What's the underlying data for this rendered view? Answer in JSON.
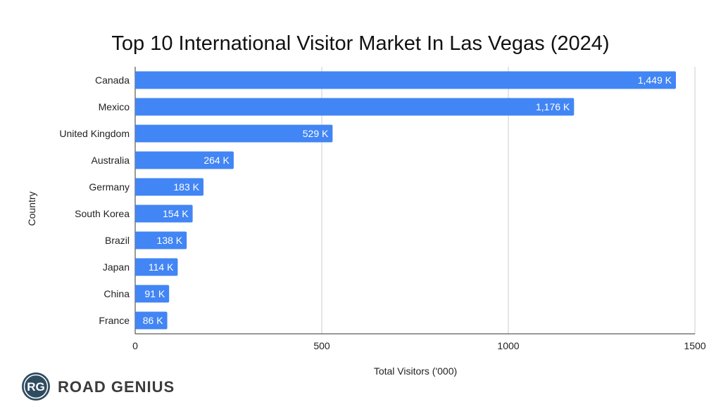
{
  "chart_data": {
    "type": "bar",
    "orientation": "horizontal",
    "title": "Top 10 International Visitor Market In Las Vegas (2024)",
    "xlabel": "Total Visitors ('000)",
    "ylabel": "Country",
    "categories": [
      "Canada",
      "Mexico",
      "United Kingdom",
      "Australia",
      "Germany",
      "South Korea",
      "Brazil",
      "Japan",
      "China",
      "France"
    ],
    "values": [
      1449,
      1176,
      529,
      264,
      183,
      154,
      138,
      114,
      91,
      86
    ],
    "data_labels": [
      "1,449 K",
      "1,176 K",
      "529 K",
      "264 K",
      "183 K",
      "154 K",
      "138 K",
      "114 K",
      "91 K",
      "86 K"
    ],
    "xlim": [
      0,
      1500
    ],
    "xticks": [
      0,
      500,
      1000,
      1500
    ],
    "xtick_labels": [
      "0",
      "500",
      "1000",
      "1500"
    ],
    "grid": true,
    "bar_color": "#4285f4"
  },
  "brand": {
    "logo_mark": "RG",
    "logo_text": "ROAD GENIUS",
    "logo_color": "#2f4b60"
  }
}
